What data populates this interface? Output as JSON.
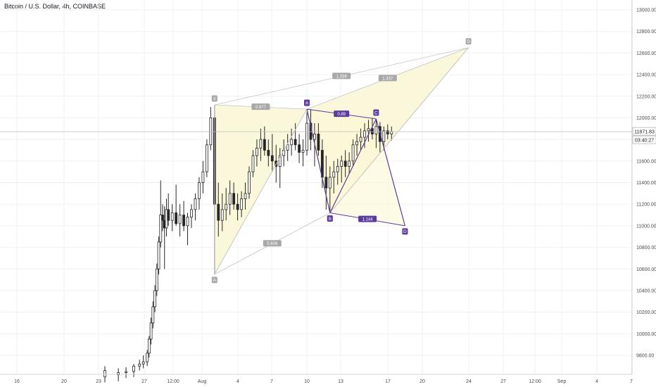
{
  "header": {
    "title": "Bitcoin / U.S. Dollar, 4h, COINBASE"
  },
  "colors": {
    "grid": "#eef0f3",
    "axis_line": "#cfd3d9",
    "candle": "#262626",
    "pattern1_fill": "#fbf6d6",
    "pattern1_line": "#c4c4c4",
    "pattern1_label_bg": "#a8a8a8",
    "pattern2_fill": "#fbf6d6",
    "pattern2_line": "#5b3c9e",
    "pattern2_label_bg": "#5b3c9e",
    "price_tag_bg": "#ffffff",
    "price_tag_text": "#131722",
    "price_line": "#bdbdbd"
  },
  "chart_data": {
    "type": "candlestick",
    "title": "Bitcoin / U.S. Dollar, 4h, COINBASE",
    "ylim": [
      9650,
      13100
    ],
    "y_ticks": [
      9800,
      10000,
      10200,
      10400,
      10600,
      10800,
      11000,
      11200,
      11400,
      11600,
      11800,
      12000,
      12200,
      12400,
      12600,
      12800,
      13000
    ],
    "y_tick_labels": [
      "9800.00",
      "10000.00",
      "10200.00",
      "10400.00",
      "10600.00",
      "10800.00",
      "11000.00",
      "11200.00",
      "11400.00",
      "11600.00",
      "11800.00",
      "12000.00",
      "12200.00",
      "12400.00",
      "12600.00",
      "12800.00",
      "13000.00"
    ],
    "x_ticks": [
      "16",
      "20",
      "23",
      "27",
      "12:00",
      "Aug",
      "4",
      "7",
      "10",
      "13",
      "17",
      "20",
      "24",
      "27",
      "12:00",
      "Sep",
      "4",
      "7"
    ],
    "last_price": "11871.83",
    "countdown": "03:40:27",
    "candles": [
      {
        "x": "Jul 23 12:00",
        "o": 9600,
        "h": 9700,
        "l": 9550,
        "c": 9660
      },
      {
        "x": "Jul 24 16:00",
        "o": 9620,
        "h": 9680,
        "l": 9560,
        "c": 9640
      },
      {
        "x": "Jul 25 08:00",
        "o": 9640,
        "h": 9690,
        "l": 9590,
        "c": 9650
      },
      {
        "x": "Jul 26 00:00",
        "o": 9650,
        "h": 9720,
        "l": 9600,
        "c": 9700
      },
      {
        "x": "Jul 26 12:00",
        "o": 9700,
        "h": 9760,
        "l": 9660,
        "c": 9720
      },
      {
        "x": "Jul 26 20:00",
        "o": 9720,
        "h": 9800,
        "l": 9680,
        "c": 9740
      },
      {
        "x": "Jul 27 04:00",
        "o": 9740,
        "h": 9850,
        "l": 9700,
        "c": 9820
      },
      {
        "x": "Jul 27 08:00",
        "o": 9820,
        "h": 9980,
        "l": 9780,
        "c": 9950
      },
      {
        "x": "Jul 27 12:00",
        "o": 9950,
        "h": 10150,
        "l": 9900,
        "c": 10100
      },
      {
        "x": "Jul 27 16:00",
        "o": 10100,
        "h": 10300,
        "l": 10050,
        "c": 10250
      },
      {
        "x": "Jul 27 20:00",
        "o": 10250,
        "h": 10450,
        "l": 10200,
        "c": 10400
      },
      {
        "x": "Jul 28 00:00",
        "o": 10400,
        "h": 10650,
        "l": 10350,
        "c": 10600
      },
      {
        "x": "Jul 28 04:00",
        "o": 10600,
        "h": 10900,
        "l": 10550,
        "c": 10850
      },
      {
        "x": "Jul 28 08:00",
        "o": 10850,
        "h": 11420,
        "l": 10800,
        "c": 11100
      },
      {
        "x": "Jul 28 12:00",
        "o": 11100,
        "h": 11200,
        "l": 10950,
        "c": 11050
      },
      {
        "x": "Jul 28 16:00",
        "o": 11050,
        "h": 11180,
        "l": 10600,
        "c": 10980
      },
      {
        "x": "Jul 28 20:00",
        "o": 10980,
        "h": 11250,
        "l": 10900,
        "c": 11150
      },
      {
        "x": "Jul 29 00:00",
        "o": 11150,
        "h": 11300,
        "l": 11000,
        "c": 11050
      },
      {
        "x": "Jul 29 08:00",
        "o": 11050,
        "h": 11200,
        "l": 10950,
        "c": 11120
      },
      {
        "x": "Jul 29 16:00",
        "o": 11120,
        "h": 11380,
        "l": 11000,
        "c": 11020
      },
      {
        "x": "Jul 30 00:00",
        "o": 11020,
        "h": 11200,
        "l": 10900,
        "c": 11100
      },
      {
        "x": "Jul 30 08:00",
        "o": 11100,
        "h": 11230,
        "l": 10950,
        "c": 11000
      },
      {
        "x": "Jul 30 16:00",
        "o": 11000,
        "h": 11120,
        "l": 10820,
        "c": 11080
      },
      {
        "x": "Jul 31 00:00",
        "o": 11080,
        "h": 11200,
        "l": 10980,
        "c": 11150
      },
      {
        "x": "Jul 31 08:00",
        "o": 11150,
        "h": 11300,
        "l": 11050,
        "c": 11250
      },
      {
        "x": "Jul 31 16:00",
        "o": 11250,
        "h": 11450,
        "l": 11150,
        "c": 11400
      },
      {
        "x": "Aug 1 00:00",
        "o": 11400,
        "h": 11600,
        "l": 11300,
        "c": 11500
      },
      {
        "x": "Aug 1 08:00",
        "o": 11500,
        "h": 11800,
        "l": 11450,
        "c": 11750
      },
      {
        "x": "Aug 1 16:00",
        "o": 11750,
        "h": 12100,
        "l": 11700,
        "c": 12000
      },
      {
        "x": "Aug 2 00:00",
        "o": 12000,
        "h": 12120,
        "l": 10550,
        "c": 11200
      },
      {
        "x": "Aug 2 08:00",
        "o": 11200,
        "h": 11400,
        "l": 10900,
        "c": 11050
      },
      {
        "x": "Aug 2 16:00",
        "o": 11050,
        "h": 11300,
        "l": 10950,
        "c": 11150
      },
      {
        "x": "Aug 3 00:00",
        "o": 11150,
        "h": 11350,
        "l": 11050,
        "c": 11200
      },
      {
        "x": "Aug 3 08:00",
        "o": 11200,
        "h": 11420,
        "l": 11100,
        "c": 11300
      },
      {
        "x": "Aug 3 16:00",
        "o": 11300,
        "h": 11400,
        "l": 11150,
        "c": 11200
      },
      {
        "x": "Aug 4 00:00",
        "o": 11200,
        "h": 11300,
        "l": 11050,
        "c": 11150
      },
      {
        "x": "Aug 4 08:00",
        "o": 11150,
        "h": 11320,
        "l": 11080,
        "c": 11250
      },
      {
        "x": "Aug 4 16:00",
        "o": 11250,
        "h": 11400,
        "l": 11150,
        "c": 11300
      },
      {
        "x": "Aug 5 00:00",
        "o": 11300,
        "h": 11550,
        "l": 11250,
        "c": 11500
      },
      {
        "x": "Aug 5 08:00",
        "o": 11500,
        "h": 11700,
        "l": 11450,
        "c": 11650
      },
      {
        "x": "Aug 5 16:00",
        "o": 11650,
        "h": 11800,
        "l": 11550,
        "c": 11720
      },
      {
        "x": "Aug 6 00:00",
        "o": 11720,
        "h": 11900,
        "l": 11600,
        "c": 11800
      },
      {
        "x": "Aug 6 08:00",
        "o": 11800,
        "h": 11920,
        "l": 11650,
        "c": 11700
      },
      {
        "x": "Aug 6 16:00",
        "o": 11700,
        "h": 11800,
        "l": 11550,
        "c": 11650
      },
      {
        "x": "Aug 7 00:00",
        "o": 11650,
        "h": 11850,
        "l": 11500,
        "c": 11600
      },
      {
        "x": "Aug 7 08:00",
        "o": 11600,
        "h": 11750,
        "l": 11400,
        "c": 11550
      },
      {
        "x": "Aug 7 16:00",
        "o": 11550,
        "h": 11720,
        "l": 11350,
        "c": 11650
      },
      {
        "x": "Aug 8 00:00",
        "o": 11650,
        "h": 11800,
        "l": 11550,
        "c": 11700
      },
      {
        "x": "Aug 8 08:00",
        "o": 11700,
        "h": 11850,
        "l": 11600,
        "c": 11750
      },
      {
        "x": "Aug 8 16:00",
        "o": 11750,
        "h": 11900,
        "l": 11650,
        "c": 11800
      },
      {
        "x": "Aug 9 00:00",
        "o": 11800,
        "h": 11950,
        "l": 11700,
        "c": 11750
      },
      {
        "x": "Aug 9 08:00",
        "o": 11750,
        "h": 11850,
        "l": 11580,
        "c": 11680
      },
      {
        "x": "Aug 9 16:00",
        "o": 11680,
        "h": 11800,
        "l": 11550,
        "c": 11700
      },
      {
        "x": "Aug 10 00:00",
        "o": 11700,
        "h": 12050,
        "l": 11650,
        "c": 11950
      },
      {
        "x": "Aug 10 08:00",
        "o": 11950,
        "h": 12080,
        "l": 11700,
        "c": 11800
      },
      {
        "x": "Aug 10 16:00",
        "o": 11800,
        "h": 11950,
        "l": 11550,
        "c": 11850
      },
      {
        "x": "Aug 11 00:00",
        "o": 11850,
        "h": 11950,
        "l": 11650,
        "c": 11700
      },
      {
        "x": "Aug 11 08:00",
        "o": 11700,
        "h": 11800,
        "l": 11350,
        "c": 11450
      },
      {
        "x": "Aug 11 16:00",
        "o": 11450,
        "h": 11650,
        "l": 11150,
        "c": 11350
      },
      {
        "x": "Aug 12 00:00",
        "o": 11350,
        "h": 11550,
        "l": 11120,
        "c": 11450
      },
      {
        "x": "Aug 12 08:00",
        "o": 11450,
        "h": 11600,
        "l": 11300,
        "c": 11500
      },
      {
        "x": "Aug 12 16:00",
        "o": 11500,
        "h": 11620,
        "l": 11380,
        "c": 11550
      },
      {
        "x": "Aug 13 00:00",
        "o": 11550,
        "h": 11650,
        "l": 11400,
        "c": 11600
      },
      {
        "x": "Aug 13 08:00",
        "o": 11600,
        "h": 11700,
        "l": 11450,
        "c": 11550
      },
      {
        "x": "Aug 13 16:00",
        "o": 11550,
        "h": 11680,
        "l": 11480,
        "c": 11600
      },
      {
        "x": "Aug 14 00:00",
        "o": 11600,
        "h": 11800,
        "l": 11550,
        "c": 11750
      },
      {
        "x": "Aug 14 08:00",
        "o": 11750,
        "h": 11850,
        "l": 11650,
        "c": 11780
      },
      {
        "x": "Aug 14 16:00",
        "o": 11780,
        "h": 11900,
        "l": 11700,
        "c": 11820
      },
      {
        "x": "Aug 15 00:00",
        "o": 11820,
        "h": 11950,
        "l": 11720,
        "c": 11880
      },
      {
        "x": "Aug 15 08:00",
        "o": 11880,
        "h": 11980,
        "l": 11780,
        "c": 11900
      },
      {
        "x": "Aug 15 16:00",
        "o": 11900,
        "h": 12000,
        "l": 11800,
        "c": 11850
      },
      {
        "x": "Aug 16 00:00",
        "o": 11850,
        "h": 11990,
        "l": 11720,
        "c": 11920
      },
      {
        "x": "Aug 16 08:00",
        "o": 11920,
        "h": 11960,
        "l": 11680,
        "c": 11780
      },
      {
        "x": "Aug 16 16:00",
        "o": 11780,
        "h": 11920,
        "l": 11700,
        "c": 11880
      },
      {
        "x": "Aug 17 00:00",
        "o": 11880,
        "h": 11940,
        "l": 11800,
        "c": 11850
      },
      {
        "x": "Aug 17 08:00",
        "o": 11850,
        "h": 11920,
        "l": 11790,
        "c": 11872
      }
    ],
    "patterns": [
      {
        "name": "pattern-grey",
        "points": [
          {
            "label": "X",
            "x": "Aug 2 00:00",
            "y": 12120
          },
          {
            "label": "A",
            "x": "Aug 2 00:00",
            "y": 10550
          },
          {
            "label": "B",
            "x": "Aug 10 00:00",
            "y": 12080
          },
          {
            "label": "C",
            "x": "Aug 12 00:00",
            "y": 11120
          },
          {
            "label": "D",
            "x": "Aug 24 00:00",
            "y": 12650
          }
        ],
        "ratios": [
          {
            "label": "0.977",
            "between": [
              "X",
              "B"
            ]
          },
          {
            "label": "1.339",
            "between": [
              "X",
              "D"
            ]
          },
          {
            "label": "1.337",
            "between": [
              "B",
              "D"
            ]
          },
          {
            "label": "0.609",
            "between": [
              "A",
              "C"
            ]
          }
        ]
      },
      {
        "name": "pattern-purple",
        "points": [
          {
            "label": "A",
            "x": "Aug 10 00:00",
            "y": 12080
          },
          {
            "label": "B",
            "x": "Aug 12 00:00",
            "y": 11120
          },
          {
            "label": "C",
            "x": "Aug 16 00:00",
            "y": 11990
          },
          {
            "label": "D",
            "x": "Aug 18 12:00",
            "y": 11000
          }
        ],
        "ratios": [
          {
            "label": "0.89",
            "between": [
              "A",
              "C"
            ]
          },
          {
            "label": "1.144",
            "between": [
              "B",
              "D"
            ]
          }
        ]
      }
    ]
  }
}
